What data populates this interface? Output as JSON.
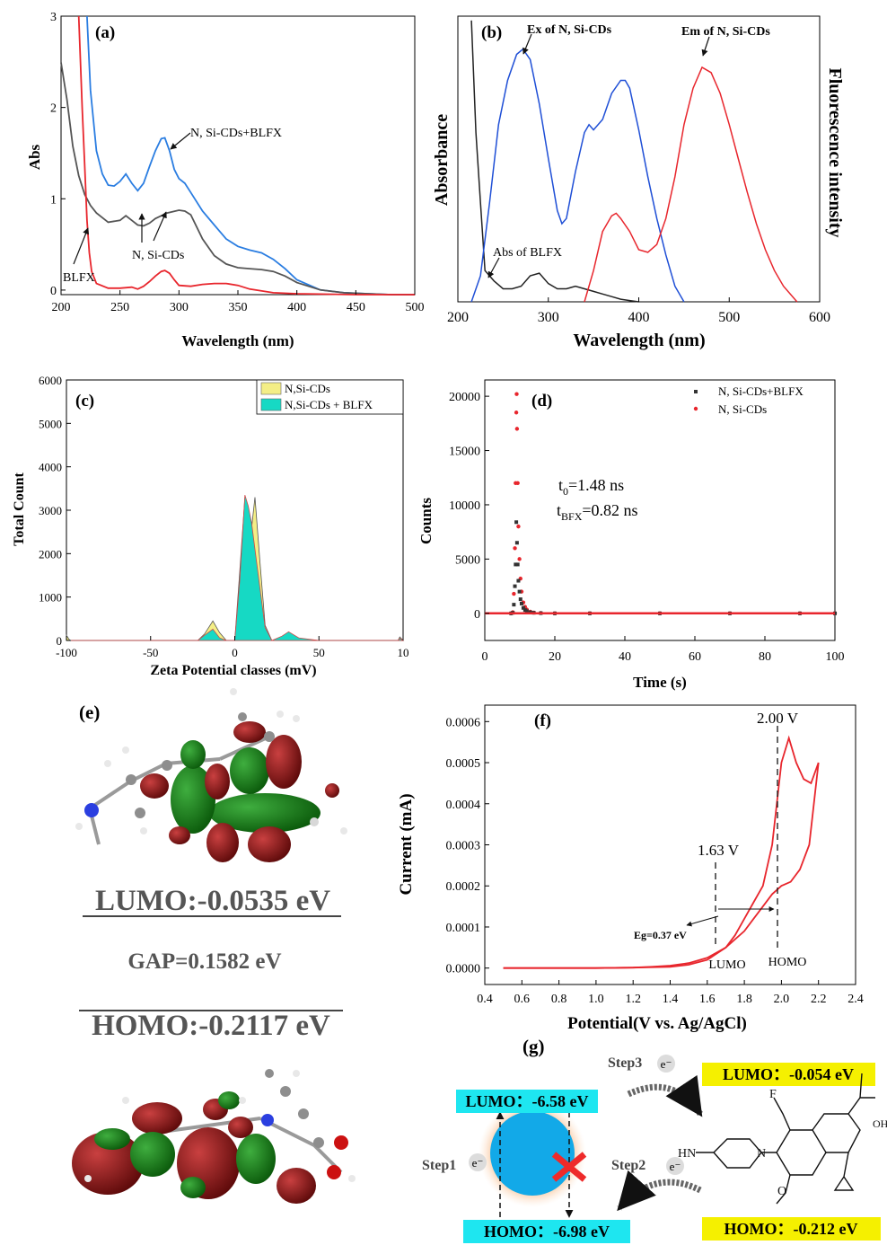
{
  "panels": {
    "a": {
      "tag": "(a)",
      "xlabel": "Wavelength (nm)",
      "ylabel": "Abs",
      "xticks": [
        "200",
        "250",
        "300",
        "350",
        "400",
        "450",
        "500"
      ],
      "yticks": [
        "0",
        "1",
        "2",
        "3"
      ],
      "ann_cds_blfx": "N, Si-CDs+BLFX",
      "ann_cds": "N, Si-CDs",
      "ann_blfx": "BLFX"
    },
    "b": {
      "tag": "(b)",
      "xlabel": "Wavelength (nm)",
      "ylabel_left": "Absorbance",
      "ylabel_right": "Fluorescence intensity",
      "xticks": [
        "200",
        "300",
        "400",
        "500",
        "600"
      ],
      "ann_ex": "Ex of N, Si-CDs",
      "ann_em": "Em of N, Si-CDs",
      "ann_abs": "Abs of BLFX"
    },
    "c": {
      "tag": "(c)",
      "xlabel": "Zeta Potential classes (mV)",
      "ylabel": "Total Count",
      "xticks": [
        "-100",
        "-50",
        "0",
        "50",
        "10"
      ],
      "yticks": [
        "0",
        "1000",
        "2000",
        "3000",
        "4000",
        "5000",
        "6000"
      ],
      "legend": [
        "N,Si-CDs",
        "N,Si-CDs + BLFX"
      ]
    },
    "d": {
      "tag": "(d)",
      "xlabel": "Time (s)",
      "ylabel": "Counts",
      "xticks": [
        "0",
        "20",
        "40",
        "60",
        "80",
        "100"
      ],
      "yticks": [
        "0",
        "5000",
        "10000",
        "15000",
        "20000"
      ],
      "legend": [
        "N, Si-CDs+BLFX",
        "N, Si-CDs"
      ],
      "t0_base": "t",
      "t0_sub": "0",
      "t0_val": "=1.48 ns",
      "tb_base": "t",
      "tb_sub": "BFX",
      "tb_val": "=0.82 ns"
    },
    "e": {
      "tag": "(e)",
      "lumo": "LUMO:-0.0535 eV",
      "gap": "GAP=0.1582 eV",
      "homo": "HOMO:-0.2117 eV"
    },
    "f": {
      "tag": "(f)",
      "xlabel": "Potential(V vs. Ag/AgCl)",
      "ylabel": "Current (mA)",
      "xticks": [
        "0.4",
        "0.6",
        "0.8",
        "1.0",
        "1.2",
        "1.4",
        "1.6",
        "1.8",
        "2.0",
        "2.2",
        "2.4"
      ],
      "yticks": [
        "0.0000",
        "0.0001",
        "0.0002",
        "0.0003",
        "0.0004",
        "0.0005",
        "0.0006"
      ],
      "ann_200": "2.00 V",
      "ann_163": "1.63 V",
      "eg": "Eg=0.37 eV",
      "lumo": "LUMO",
      "homo": "HOMO"
    },
    "g": {
      "tag": "(g)",
      "lumo_cd": "LUMO：-6.58 eV",
      "homo_cd": "HOMO：-6.98 eV",
      "lumo_b": "LUMO：-0.054 eV",
      "homo_b": "HOMO：-0.212 eV",
      "step1": "Step1",
      "step2": "Step2",
      "step3": "Step3",
      "electron": "e⁻",
      "mol_f": "F",
      "mol_hn": "HN",
      "mol_n": "N",
      "mol_o": "O",
      "mol_oh": "OH"
    }
  },
  "colors": {
    "black": "#222222",
    "red": "#e8262d",
    "blue": "#1f4fd6",
    "bluelight": "#2a7de1",
    "yellow": "#f4ee86",
    "cyan": "#16d9c4",
    "highlight_cyan": "#1ee6f0",
    "highlight_yellow": "#f5f000",
    "sphere": "#12a9e8"
  },
  "chart_data": [
    {
      "type": "line",
      "panel": "a",
      "xlabel": "Wavelength (nm)",
      "ylabel": "Abs",
      "xlim": [
        200,
        500
      ],
      "ylim": [
        0,
        3
      ],
      "series": [
        {
          "name": "N, Si-CDs+BLFX",
          "color": "#2a7de1",
          "x": [
            222,
            225,
            230,
            235,
            240,
            245,
            250,
            255,
            260,
            265,
            270,
            275,
            280,
            285,
            288,
            292,
            296,
            300,
            305,
            310,
            320,
            330,
            340,
            350,
            360,
            370,
            380,
            390,
            400,
            420,
            440,
            460,
            480,
            500
          ],
          "y": [
            3.0,
            2.2,
            1.55,
            1.3,
            1.18,
            1.17,
            1.22,
            1.3,
            1.2,
            1.12,
            1.2,
            1.38,
            1.55,
            1.68,
            1.69,
            1.55,
            1.35,
            1.25,
            1.2,
            1.1,
            0.9,
            0.75,
            0.6,
            0.52,
            0.48,
            0.45,
            0.38,
            0.28,
            0.16,
            0.05,
            0.02,
            0.01,
            0.0,
            0.0
          ]
        },
        {
          "name": "N, Si-CDs",
          "color": "#555555",
          "x": [
            200,
            205,
            210,
            215,
            220,
            225,
            230,
            240,
            250,
            255,
            260,
            265,
            270,
            275,
            280,
            290,
            300,
            305,
            310,
            320,
            330,
            340,
            350,
            360,
            370,
            380,
            390,
            400,
            420,
            440,
            460,
            480,
            500
          ],
          "y": [
            2.5,
            2.1,
            1.6,
            1.28,
            1.08,
            0.96,
            0.88,
            0.78,
            0.8,
            0.85,
            0.8,
            0.75,
            0.74,
            0.77,
            0.82,
            0.88,
            0.91,
            0.9,
            0.86,
            0.6,
            0.42,
            0.33,
            0.29,
            0.28,
            0.27,
            0.25,
            0.2,
            0.13,
            0.05,
            0.02,
            0.01,
            0.0,
            0.0
          ]
        },
        {
          "name": "BLFX",
          "color": "#e8262d",
          "x": [
            215,
            218,
            220,
            222,
            224,
            226,
            230,
            240,
            250,
            260,
            265,
            270,
            275,
            280,
            285,
            288,
            292,
            296,
            300,
            310,
            320,
            330,
            340,
            350,
            360,
            380,
            400,
            450,
            500
          ],
          "y": [
            3.0,
            2.0,
            1.4,
            0.8,
            0.45,
            0.25,
            0.12,
            0.07,
            0.07,
            0.08,
            0.06,
            0.09,
            0.14,
            0.2,
            0.25,
            0.26,
            0.23,
            0.16,
            0.1,
            0.09,
            0.11,
            0.12,
            0.12,
            0.1,
            0.06,
            0.02,
            0.01,
            0.0,
            0.0
          ]
        }
      ]
    },
    {
      "type": "line",
      "panel": "b",
      "xlabel": "Wavelength (nm)",
      "xlim": [
        200,
        600
      ],
      "ylim": [
        0,
        1
      ],
      "y_units": "normalized",
      "series": [
        {
          "name": "Abs of BLFX",
          "color": "#222222",
          "x": [
            215,
            220,
            225,
            230,
            240,
            250,
            260,
            270,
            280,
            290,
            300,
            310,
            320,
            330,
            340,
            350,
            360,
            370,
            380,
            390,
            400
          ],
          "y": [
            1.08,
            0.65,
            0.38,
            0.12,
            0.08,
            0.05,
            0.05,
            0.06,
            0.1,
            0.11,
            0.07,
            0.05,
            0.05,
            0.06,
            0.05,
            0.04,
            0.03,
            0.02,
            0.01,
            0.005,
            0.0
          ]
        },
        {
          "name": "Ex of N, Si-CDs",
          "color": "#1f4fd6",
          "x": [
            215,
            225,
            235,
            245,
            255,
            265,
            272,
            280,
            290,
            300,
            310,
            315,
            320,
            330,
            340,
            345,
            350,
            360,
            370,
            380,
            385,
            390,
            400,
            410,
            420,
            430,
            440,
            450
          ],
          "y": [
            0.0,
            0.1,
            0.38,
            0.68,
            0.85,
            0.95,
            0.97,
            0.93,
            0.76,
            0.55,
            0.35,
            0.3,
            0.32,
            0.5,
            0.65,
            0.68,
            0.66,
            0.7,
            0.8,
            0.85,
            0.85,
            0.82,
            0.66,
            0.48,
            0.32,
            0.18,
            0.06,
            0.0
          ]
        },
        {
          "name": "Em of N, Si-CDs",
          "color": "#e8262d",
          "x": [
            340,
            350,
            360,
            370,
            375,
            380,
            390,
            400,
            410,
            420,
            430,
            440,
            450,
            460,
            470,
            480,
            490,
            500,
            510,
            520,
            530,
            540,
            550,
            560,
            575
          ],
          "y": [
            0.0,
            0.12,
            0.27,
            0.33,
            0.34,
            0.32,
            0.27,
            0.2,
            0.19,
            0.22,
            0.32,
            0.48,
            0.68,
            0.82,
            0.9,
            0.88,
            0.8,
            0.68,
            0.55,
            0.42,
            0.3,
            0.2,
            0.12,
            0.06,
            0.0
          ]
        }
      ]
    },
    {
      "type": "area",
      "panel": "c",
      "xlabel": "Zeta Potential classes (mV)",
      "ylabel": "Total Count",
      "xlim": [
        -100,
        100
      ],
      "ylim": [
        0,
        6000
      ],
      "series": [
        {
          "name": "N,Si-CDs",
          "color": "#f4ee86",
          "x": [
            -100,
            -99,
            -98,
            -30,
            -22,
            -18,
            -13,
            -9,
            -5,
            0,
            3,
            6,
            8,
            10,
            12,
            15,
            18,
            22,
            28,
            32,
            38,
            50,
            97,
            98,
            100
          ],
          "y": [
            120,
            60,
            0,
            0,
            0,
            150,
            450,
            180,
            0,
            0,
            1600,
            3300,
            2400,
            2600,
            3300,
            1800,
            350,
            0,
            40,
            110,
            40,
            0,
            0,
            80,
            0
          ]
        },
        {
          "name": "N,Si-CDs + BLFX",
          "color": "#16d9c4",
          "x": [
            -100,
            -99,
            -98,
            -30,
            -22,
            -18,
            -13,
            -9,
            -5,
            0,
            3,
            6,
            8,
            10,
            12,
            15,
            18,
            22,
            28,
            32,
            38,
            50,
            97,
            98,
            100
          ],
          "y": [
            0,
            0,
            0,
            0,
            0,
            120,
            260,
            60,
            0,
            0,
            1400,
            3350,
            3100,
            2700,
            2100,
            1200,
            300,
            0,
            100,
            200,
            60,
            0,
            0,
            50,
            0
          ]
        }
      ]
    },
    {
      "type": "scatter",
      "panel": "d",
      "xlabel": "Time (s)",
      "ylabel": "Counts",
      "xlim": [
        0,
        100
      ],
      "ylim": [
        -2500,
        21500
      ],
      "series": [
        {
          "name": "N, Si-CDs+BLFX",
          "color": "#333333",
          "x": [
            7.5,
            8,
            8.3,
            8.6,
            8.8,
            9,
            9.2,
            9.4,
            9.6,
            9.9,
            10.2,
            10.5,
            11,
            11.5,
            12,
            13,
            14,
            16,
            20,
            30,
            50,
            70,
            90,
            100
          ],
          "y": [
            0,
            50,
            800,
            2500,
            4500,
            8400,
            6500,
            4500,
            3000,
            2000,
            1300,
            900,
            500,
            300,
            200,
            100,
            50,
            20,
            0,
            0,
            0,
            0,
            0,
            0
          ]
        },
        {
          "name": "N, Si-CDs",
          "color": "#e8262d",
          "x": [
            7.5,
            8,
            8.3,
            8.6,
            8.8,
            9,
            9.1,
            9.2,
            9.4,
            9.6,
            9.9,
            10.2,
            10.5,
            11,
            11.5,
            12,
            13,
            14,
            16,
            20,
            30,
            50,
            70,
            90,
            100
          ],
          "y": [
            0,
            100,
            1800,
            6000,
            12000,
            18500,
            20200,
            17000,
            12000,
            8000,
            5000,
            3200,
            2000,
            1000,
            600,
            350,
            150,
            70,
            30,
            0,
            0,
            0,
            0,
            0,
            0
          ]
        }
      ]
    },
    {
      "type": "line",
      "panel": "f",
      "xlabel": "Potential(V vs. Ag/AgCl)",
      "ylabel": "Current (mA)",
      "xlim": [
        0.4,
        2.4
      ],
      "ylim": [
        -4e-05,
        0.00064
      ],
      "series": [
        {
          "name": "forward",
          "color": "#e8262d",
          "x": [
            0.5,
            0.8,
            1.0,
            1.2,
            1.4,
            1.5,
            1.6,
            1.7,
            1.75,
            1.8,
            1.85,
            1.9,
            1.95,
            2.0,
            2.04,
            2.08,
            2.12,
            2.16,
            2.2
          ],
          "y": [
            0.0,
            0.0,
            0.0,
            1e-06,
            3e-06,
            8e-06,
            2e-05,
            5e-05,
            8e-05,
            0.00012,
            0.00016,
            0.0002,
            0.0003,
            0.0005,
            0.00056,
            0.0005,
            0.00046,
            0.00045,
            0.0005
          ]
        },
        {
          "name": "reverse",
          "color": "#e8262d",
          "x": [
            2.2,
            2.15,
            2.1,
            2.05,
            2.0,
            1.95,
            1.9,
            1.85,
            1.8,
            1.7,
            1.6,
            1.5,
            1.4,
            1.3,
            1.2,
            1.0,
            0.8,
            0.5
          ],
          "y": [
            0.0005,
            0.0003,
            0.00024,
            0.00021,
            0.0002,
            0.00018,
            0.00015,
            0.00012,
            9e-05,
            5e-05,
            2.5e-05,
            1.2e-05,
            6e-06,
            3e-06,
            1e-06,
            0.0,
            0.0,
            0.0
          ]
        }
      ]
    }
  ]
}
